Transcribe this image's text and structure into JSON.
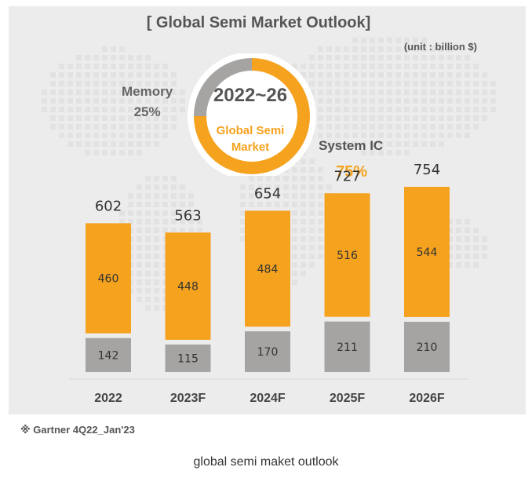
{
  "title": "[ Global Semi Market Outlook]",
  "unit": "(unit : billion $)",
  "donut": {
    "title": "2022~26",
    "subtitle_line1": "Global Semi",
    "subtitle_line2": "Market",
    "memory_label": "Memory",
    "memory_pct": "25%",
    "memory_share": 0.25,
    "system_label": "System IC",
    "system_pct": "75%",
    "system_share": 0.75
  },
  "source": "※ Gartner 4Q22_Jan'23",
  "caption": "global semi maket outlook",
  "colors": {
    "system_ic": "#f5a21e",
    "memory": "#a6a4a2",
    "panel": "#ececec",
    "text": "#555555"
  },
  "chart_data": {
    "type": "bar",
    "stacked": true,
    "categories": [
      "2022",
      "2023F",
      "2024F",
      "2025F",
      "2026F"
    ],
    "series": [
      {
        "name": "Memory",
        "values": [
          142,
          115,
          170,
          211,
          210
        ]
      },
      {
        "name": "System IC",
        "values": [
          460,
          448,
          484,
          516,
          544
        ]
      }
    ],
    "totals": [
      602,
      563,
      654,
      727,
      754
    ],
    "ylim": [
      0,
      800
    ]
  }
}
